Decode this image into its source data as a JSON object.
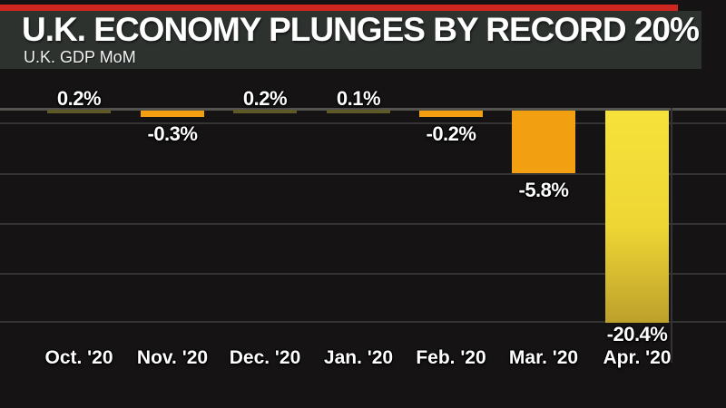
{
  "header": {
    "title": "U.K. ECONOMY PLUNGES BY RECORD 20%",
    "subtitle": "U.K. GDP MoM"
  },
  "colors": {
    "accent_red": "#cf2620",
    "header_bg": "#2d322f",
    "chart_bg": "#151313",
    "zero_line": "#54544e",
    "gridline": "#343434",
    "bar_small_positive_olive": "#5f5827",
    "bar_negative_orange": "#f2a011",
    "bar_min_yellow_top": "#f6e23a",
    "bar_min_yellow_mid": "#eed634",
    "bar_min_yellow_bottom": "#bda02c",
    "label_text": "#ffffff"
  },
  "chart_data": {
    "type": "bar",
    "title": "U.K. ECONOMY PLUNGES BY RECORD 20%",
    "subtitle": "U.K. GDP MoM",
    "categories": [
      "Oct. '20",
      "Nov. '20",
      "Dec. '20",
      "Jan. '20",
      "Feb. '20",
      "Mar. '20",
      "Apr. '20"
    ],
    "values": [
      0.2,
      -0.3,
      0.2,
      0.1,
      -0.2,
      -5.8,
      -20.4
    ],
    "value_labels": [
      "0.2%",
      "-0.3%",
      "0.2%",
      "0.1%",
      "-0.2%",
      "-5.8%",
      "-20.4%"
    ],
    "unit": "%",
    "ylabel": "",
    "xlabel": "",
    "ylim": [
      -21.5,
      1
    ],
    "grid": "horizontal",
    "legend": "none",
    "bar_color_rule": {
      "positive": "dark olive",
      "negative": "orange",
      "minimum_value": "yellow gradient"
    }
  }
}
